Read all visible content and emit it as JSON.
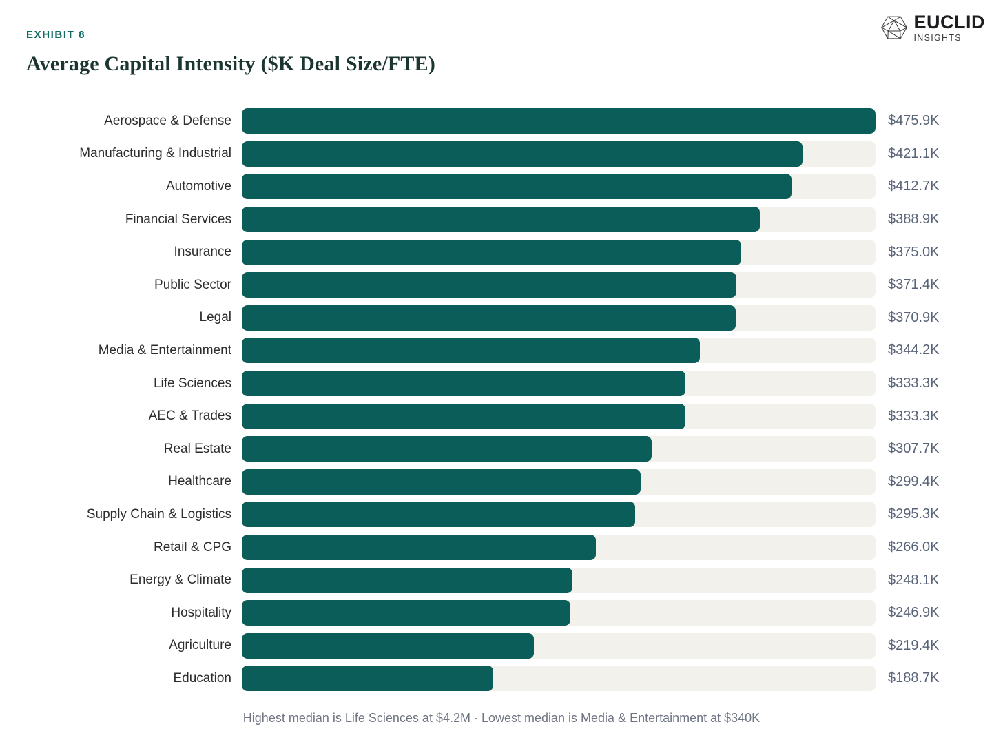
{
  "exhibit": {
    "label": "EXHIBIT 8"
  },
  "title": "Average Capital Intensity ($K Deal Size/FTE)",
  "logo": {
    "name": "EUCLID",
    "subtitle": "INSIGHTS",
    "icon": "icosahedron-wireframe-icon"
  },
  "footer": {
    "note": "Highest median is Life Sciences at $4.2M · Lowest median is Media & Entertainment at $340K"
  },
  "colors": {
    "bar": "#0a5d58",
    "track": "#f2f1ec",
    "accent_teal": "#0e6a63",
    "title_text": "#1b3530",
    "label_text": "#2d2d2d",
    "value_text": "#5a6478",
    "footer_text": "#6f7582"
  },
  "chart_data": {
    "type": "bar",
    "orientation": "horizontal",
    "title": "Average Capital Intensity ($K Deal Size/FTE)",
    "categories": [
      "Aerospace & Defense",
      "Manufacturing & Industrial",
      "Automotive",
      "Financial Services",
      "Insurance",
      "Public Sector",
      "Legal",
      "Media & Entertainment",
      "Life Sciences",
      "AEC & Trades",
      "Real Estate",
      "Healthcare",
      "Supply Chain & Logistics",
      "Retail & CPG",
      "Energy & Climate",
      "Hospitality",
      "Agriculture",
      "Education"
    ],
    "values": [
      475.9,
      421.1,
      412.7,
      388.9,
      375.0,
      371.4,
      370.9,
      344.2,
      333.3,
      333.3,
      307.7,
      299.4,
      295.3,
      266.0,
      248.1,
      246.9,
      219.4,
      188.7
    ],
    "value_labels": [
      "$475.9K",
      "$421.1K",
      "$412.7K",
      "$388.9K",
      "$375.0K",
      "$371.4K",
      "$370.9K",
      "$344.2K",
      "$333.3K",
      "$333.3K",
      "$307.7K",
      "$299.4K",
      "$295.3K",
      "$266.0K",
      "$248.1K",
      "$246.9K",
      "$219.4K",
      "$188.7K"
    ],
    "xlabel": "",
    "ylabel": "",
    "xlim": [
      0,
      475.9
    ],
    "grid": false,
    "legend": false,
    "annotation": "Highest median is Life Sciences at $4.2M · Lowest median is Media & Entertainment at $340K"
  }
}
